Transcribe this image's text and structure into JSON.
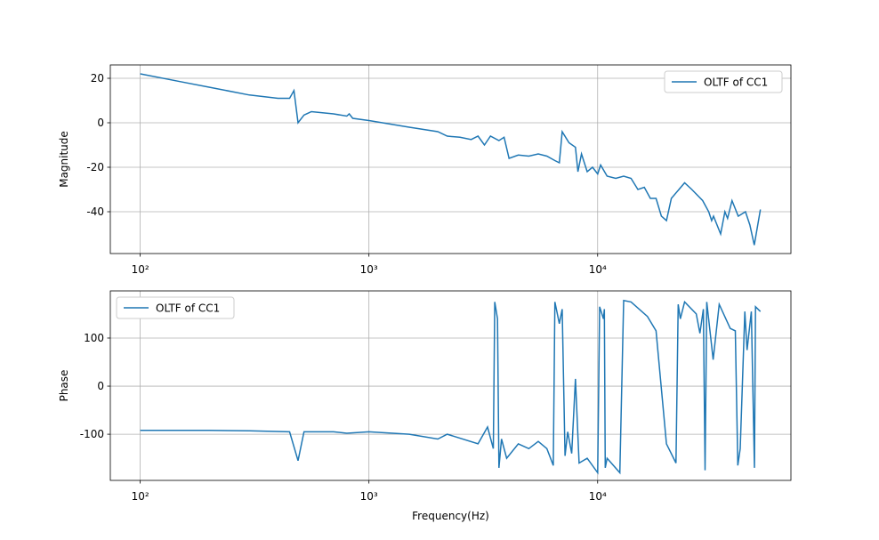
{
  "chart_data": [
    {
      "type": "line",
      "ylabel": "Magnitude",
      "log_x": true,
      "grid": true,
      "legend": "upper right",
      "xlim": [
        74,
        70000
      ],
      "ylim": [
        -58.8,
        26
      ],
      "xticks": [
        {
          "value": 100,
          "label": "10²"
        },
        {
          "value": 1000,
          "label": "10³"
        },
        {
          "value": 10000,
          "label": "10⁴"
        }
      ],
      "yticks": [
        -40,
        -20,
        0,
        20
      ],
      "x": [
        100,
        150,
        200,
        300,
        400,
        450,
        470,
        490,
        520,
        560,
        700,
        800,
        820,
        850,
        1000,
        1500,
        2000,
        2200,
        2500,
        2800,
        3000,
        3200,
        3400,
        3700,
        3900,
        4100,
        4500,
        5000,
        5500,
        6000,
        6500,
        6800,
        7000,
        7500,
        8000,
        8200,
        8500,
        9000,
        9500,
        10000,
        10300,
        11000,
        12000,
        13000,
        14000,
        15000,
        16000,
        17000,
        18000,
        19000,
        20000,
        21000,
        24000,
        25800,
        28800,
        30600,
        31500,
        32100,
        34500,
        36000,
        37000,
        38700,
        41200,
        44300,
        46300,
        48400,
        51500
      ],
      "series": [
        {
          "name": "OLTF of CC1",
          "color": "#1f77b4",
          "values": [
            22,
            18.5,
            16,
            12.5,
            11,
            11,
            14.5,
            0,
            3.5,
            5,
            4,
            3,
            4,
            2,
            1,
            -2,
            -4,
            -6,
            -6.5,
            -7.5,
            -6,
            -10,
            -6,
            -8,
            -6.5,
            -16,
            -14.5,
            -15,
            -14,
            -15,
            -17,
            -18,
            -4,
            -9,
            -11,
            -22,
            -14,
            -22,
            -20,
            -23,
            -19,
            -24,
            -25,
            -24,
            -25,
            -30,
            -29,
            -34,
            -34,
            -42,
            -44,
            -34,
            -27,
            -30,
            -35,
            -40,
            -44,
            -42,
            -50,
            -40,
            -43,
            -35,
            -42,
            -40,
            -46,
            -55,
            -39
          ]
        }
      ]
    },
    {
      "type": "line",
      "ylabel": "Phase",
      "xlabel": "Frequency(Hz)",
      "log_x": true,
      "grid": true,
      "legend": "upper left",
      "xlim": [
        74,
        70000
      ],
      "ylim": [
        -196,
        198
      ],
      "xticks": [
        {
          "value": 100,
          "label": "10²"
        },
        {
          "value": 1000,
          "label": "10³"
        },
        {
          "value": 10000,
          "label": "10⁴"
        }
      ],
      "yticks": [
        -100,
        0,
        100
      ],
      "x": [
        100,
        200,
        300,
        450,
        490,
        520,
        700,
        800,
        1000,
        1500,
        2000,
        2200,
        3000,
        3300,
        3500,
        3550,
        3650,
        3700,
        3800,
        4000,
        4500,
        5000,
        5500,
        6000,
        6400,
        6500,
        6800,
        7000,
        7200,
        7400,
        7700,
        8000,
        8300,
        9000,
        10000,
        10200,
        10600,
        10700,
        10800,
        11000,
        12500,
        13000,
        14000,
        16500,
        18000,
        20000,
        22000,
        22500,
        23000,
        24000,
        27000,
        28000,
        29000,
        29500,
        30000,
        32000,
        34000,
        38000,
        40000,
        41000,
        42000,
        44000,
        45000,
        47000,
        48500,
        49000,
        51500
      ],
      "series": [
        {
          "name": "OLTF of CC1",
          "color": "#1f77b4",
          "values": [
            -92,
            -92,
            -93,
            -95,
            -155,
            -95,
            -95,
            -98,
            -95,
            -100,
            -110,
            -100,
            -120,
            -85,
            -130,
            175,
            140,
            -170,
            -110,
            -150,
            -120,
            -130,
            -115,
            -130,
            -165,
            175,
            130,
            160,
            -145,
            -95,
            -140,
            15,
            -160,
            -150,
            -180,
            165,
            140,
            160,
            -170,
            -150,
            -180,
            178,
            175,
            145,
            115,
            -120,
            -160,
            170,
            140,
            175,
            150,
            110,
            160,
            -175,
            175,
            55,
            170,
            120,
            115,
            -165,
            -130,
            155,
            75,
            155,
            -170,
            165,
            155
          ]
        }
      ]
    }
  ]
}
